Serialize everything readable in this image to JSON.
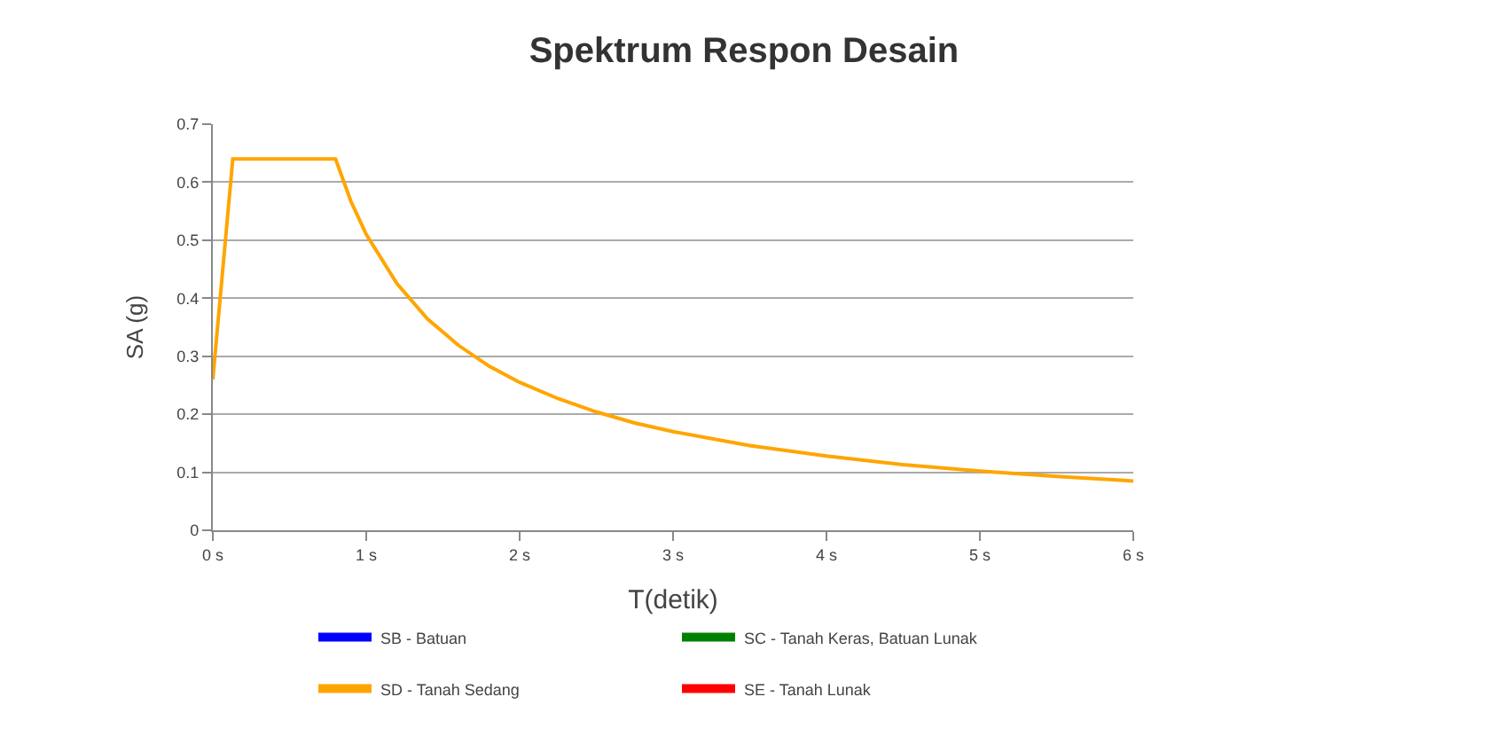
{
  "chart_data": {
    "type": "line",
    "title": "Spektrum Respon Desain",
    "xlabel": "T(detik)",
    "ylabel": "SA (g)",
    "x": [
      0,
      0.13,
      0.8,
      0.9,
      1,
      1.2,
      1.4,
      1.6,
      1.8,
      2,
      2.25,
      2.5,
      2.75,
      3,
      3.5,
      4,
      4.5,
      5,
      5.5,
      6
    ],
    "series": [
      {
        "name": "SB - Batuan",
        "color": "#0000ff",
        "values": [
          null,
          null,
          null,
          null,
          null,
          null,
          null,
          null,
          null,
          null,
          null,
          null,
          null,
          null,
          null,
          null,
          null,
          null,
          null,
          null
        ]
      },
      {
        "name": "SC - Tanah Keras, Batuan Lunak",
        "color": "#008000",
        "values": [
          null,
          null,
          null,
          null,
          null,
          null,
          null,
          null,
          null,
          null,
          null,
          null,
          null,
          null,
          null,
          null,
          null,
          null,
          null,
          null
        ]
      },
      {
        "name": "SD - Tanah Sedang",
        "color": "#ffa500",
        "values": [
          0.26,
          0.64,
          0.64,
          0.567,
          0.51,
          0.425,
          0.364,
          0.319,
          0.283,
          0.255,
          0.227,
          0.204,
          0.185,
          0.17,
          0.146,
          0.128,
          0.113,
          0.102,
          0.093,
          0.085
        ]
      },
      {
        "name": "SE - Tanah Lunak",
        "color": "#ff0000",
        "values": [
          null,
          null,
          null,
          null,
          null,
          null,
          null,
          null,
          null,
          null,
          null,
          null,
          null,
          null,
          null,
          null,
          null,
          null,
          null,
          null
        ]
      }
    ],
    "xlim": [
      0,
      6
    ],
    "xticks": [
      {
        "value": 0,
        "label": "0 s"
      },
      {
        "value": 1,
        "label": "1 s"
      },
      {
        "value": 2,
        "label": "2 s"
      },
      {
        "value": 3,
        "label": "3 s"
      },
      {
        "value": 4,
        "label": "4 s"
      },
      {
        "value": 5,
        "label": "5 s"
      },
      {
        "value": 6,
        "label": "6 s"
      }
    ],
    "ylim": [
      0,
      0.7
    ],
    "yticks": [
      0,
      0.1,
      0.2,
      0.3,
      0.4,
      0.5,
      0.6,
      0.7
    ],
    "grid": "y",
    "legend": "bottom",
    "marker": "none",
    "line_style": "solid"
  }
}
